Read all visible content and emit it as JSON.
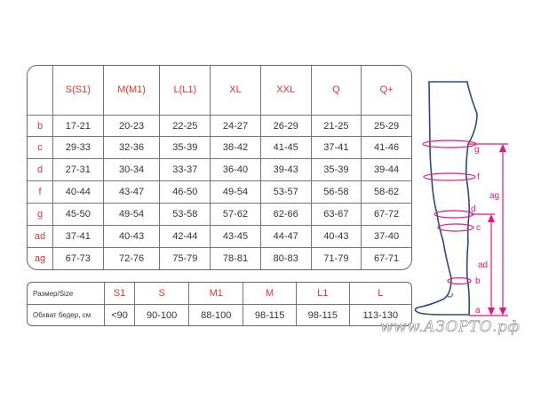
{
  "size_table": {
    "headers": [
      "",
      "S(S1)",
      "M(M1)",
      "L(L1)",
      "XL",
      "XXL",
      "Q",
      "Q+"
    ],
    "rows": [
      {
        "label": "b",
        "values": [
          "17-21",
          "20-23",
          "22-25",
          "24-27",
          "26-29",
          "21-25",
          "25-29"
        ]
      },
      {
        "label": "c",
        "values": [
          "29-33",
          "32-36",
          "35-39",
          "38-42",
          "41-45",
          "37-41",
          "41-46"
        ]
      },
      {
        "label": "d",
        "values": [
          "27-31",
          "30-34",
          "33-37",
          "36-40",
          "39-43",
          "35-39",
          "39-44"
        ]
      },
      {
        "label": "f",
        "values": [
          "40-44",
          "43-47",
          "46-50",
          "49-54",
          "53-57",
          "56-58",
          "58-62"
        ]
      },
      {
        "label": "g",
        "values": [
          "45-50",
          "49-54",
          "53-58",
          "57-62",
          "62-66",
          "63-67",
          "67-72"
        ]
      },
      {
        "label": "ad",
        "values": [
          "37-41",
          "40-43",
          "42-44",
          "43-45",
          "44-47",
          "40-43",
          "37-40"
        ]
      },
      {
        "label": "ag",
        "values": [
          "67-73",
          "72-76",
          "75-79",
          "78-81",
          "80-83",
          "71-79",
          "67-71"
        ]
      }
    ]
  },
  "hip_table": {
    "row1": {
      "label": "Размер/Size",
      "values": [
        "S1",
        "S",
        "M1",
        "M",
        "L1",
        "L"
      ]
    },
    "row2": {
      "label": "Обхват бедер, см",
      "values": [
        "<90",
        "90-100",
        "88-100",
        "98-115",
        "98-115",
        "113-130"
      ]
    }
  },
  "diagram": {
    "labels": {
      "g": "g",
      "f": "f",
      "d": "d",
      "c": "c",
      "b": "b",
      "a": "a",
      "ag": "ag",
      "ad": "ad"
    },
    "accent_color": "#e8157f",
    "outline_color": "#2c4a80"
  },
  "watermark": "www.АЗОРТО.рф",
  "colors": {
    "header_red": "#e8322c"
  }
}
